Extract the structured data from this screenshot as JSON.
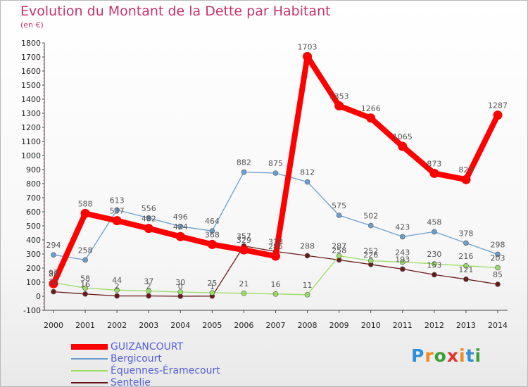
{
  "header": {
    "title": "Evolution du Montant de la Dette par Habitant",
    "subtitle": "(en €)"
  },
  "logo": {
    "text": "Proxiti",
    "letter_colors": [
      "#2f8fd8",
      "#f28a1e",
      "#3aa13a",
      "#e3342f",
      "#f28a1e",
      "#2f8fd8",
      "#3aa13a"
    ]
  },
  "chart_data": {
    "type": "line",
    "title": "Evolution du Montant de la Dette par Habitant",
    "ylabel": "(en €)",
    "xlabel": "",
    "x": [
      "2000",
      "2001",
      "2002",
      "2003",
      "2004",
      "2005",
      "2006",
      "2007",
      "2008",
      "2009",
      "2010",
      "2011",
      "2012",
      "2013",
      "2014"
    ],
    "ylim": [
      -100,
      1800
    ],
    "yticks": [
      -100,
      0,
      100,
      200,
      300,
      400,
      500,
      600,
      700,
      800,
      900,
      1000,
      1100,
      1200,
      1300,
      1400,
      1500,
      1600,
      1700,
      1800
    ],
    "grid": false,
    "legend": "bottom-left",
    "series": [
      {
        "name": "GUIZANCOURT",
        "color": "#ff0000",
        "values": [
          89,
          588,
          537,
          482,
          424,
          368,
          329,
          285,
          1703,
          1353,
          1266,
          1065,
          873,
          829,
          1287
        ]
      },
      {
        "name": "Bergicourt",
        "color": "#6a9fd0",
        "values": [
          294,
          258,
          613,
          556,
          496,
          464,
          882,
          875,
          812,
          575,
          502,
          423,
          458,
          378,
          298
        ]
      },
      {
        "name": "Équennes-Éramecourt",
        "color": "#99dd66",
        "values": [
          97,
          58,
          44,
          37,
          30,
          25,
          21,
          16,
          11,
          287,
          252,
          243,
          230,
          216,
          203
        ]
      },
      {
        "name": "Sentelie",
        "color": "#6b1a1a",
        "values": [
          32,
          16,
          2,
          2,
          0,
          1,
          357,
          318,
          288,
          258,
          226,
          193,
          153,
          121,
          85
        ]
      }
    ]
  }
}
